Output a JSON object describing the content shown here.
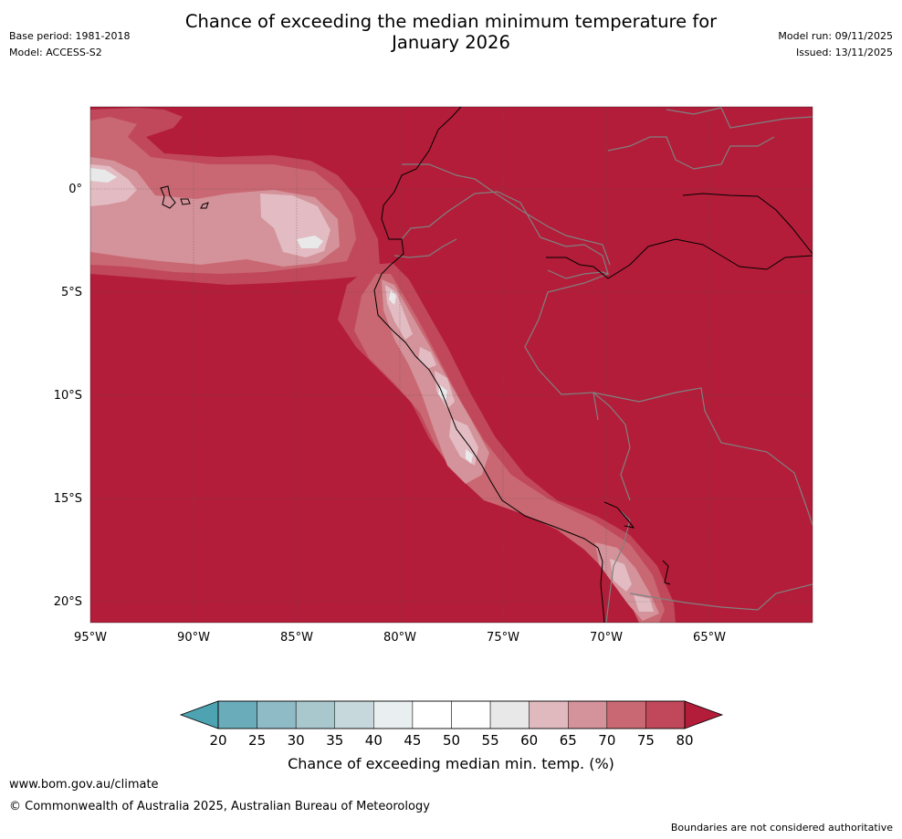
{
  "header": {
    "title_line1": "Chance of exceeding the median minimum temperature for",
    "title_line2": "January 2026",
    "base_period": "Base period: 1981-2018",
    "model": "Model: ACCESS-S2",
    "model_run": "Model run: 09/11/2025",
    "issued": "Issued: 13/11/2025"
  },
  "map": {
    "lat_labels": [
      "0°",
      "5°S",
      "10°S",
      "15°S",
      "20°S"
    ],
    "lon_labels": [
      "95°W",
      "90°W",
      "85°W",
      "80°W",
      "75°W",
      "70°W",
      "65°W"
    ],
    "colors": {
      "above80": "#b31d39",
      "c75": "#c0485a",
      "c70": "#c96872",
      "c65": "#d4929a",
      "c60": "#e2bcc2",
      "c55": "#e9e9e9",
      "c50": "#ffffff",
      "coast": "#000000",
      "border": "#808080"
    }
  },
  "colorbar": {
    "ticks": [
      "20",
      "25",
      "30",
      "35",
      "40",
      "45",
      "50",
      "55",
      "60",
      "65",
      "70",
      "75",
      "80"
    ],
    "colors": [
      "#6aacba",
      "#8ebbc6",
      "#a9c8ce",
      "#c7d8dc",
      "#e9eff1",
      "#ffffff",
      "#ffffff",
      "#e8e8e8",
      "#e0b9bf",
      "#d4929a",
      "#c96872",
      "#c0485a"
    ],
    "low_color": "#4da3b1",
    "high_color": "#b31d39",
    "title": "Chance of exceeding median min. temp. (%)"
  },
  "footer": {
    "link": "www.bom.gov.au/climate",
    "copyright": "© Commonwealth of Australia 2025, Australian Bureau of Meteorology",
    "note": "Boundaries are not considered authoritative"
  }
}
